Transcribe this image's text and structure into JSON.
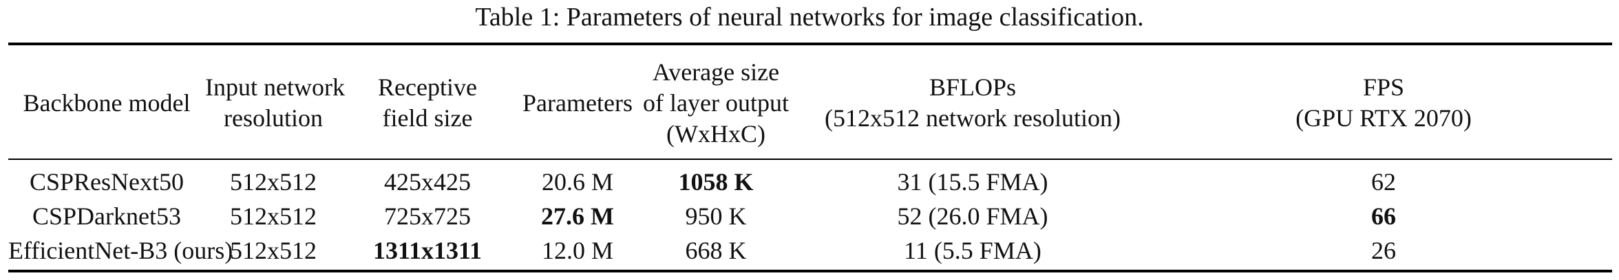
{
  "caption": "Table 1: Parameters of neural networks for image classification.",
  "headers": [
    [
      "Backbone model"
    ],
    [
      "Input network",
      "resolution"
    ],
    [
      "Receptive",
      "field size"
    ],
    [
      "Parameters"
    ],
    [
      "Average size",
      "of layer output",
      "(WxHxC)"
    ],
    [
      "BFLOPs",
      "(512x512 network resolution)"
    ],
    [
      "FPS",
      "(GPU RTX 2070)"
    ]
  ],
  "rows": [
    [
      {
        "text": "CSPResNext50",
        "bold": false
      },
      {
        "text": "512x512",
        "bold": false
      },
      {
        "text": "425x425",
        "bold": false
      },
      {
        "text": "20.6 M",
        "bold": false
      },
      {
        "text": "1058 K",
        "bold": true
      },
      {
        "text": "31 (15.5 FMA)",
        "bold": false
      },
      {
        "text": "62",
        "bold": false
      }
    ],
    [
      {
        "text": "CSPDarknet53",
        "bold": false
      },
      {
        "text": "512x512",
        "bold": false
      },
      {
        "text": "725x725",
        "bold": false
      },
      {
        "text": "27.6 M",
        "bold": true
      },
      {
        "text": "950 K",
        "bold": false
      },
      {
        "text": "52 (26.0 FMA)",
        "bold": false
      },
      {
        "text": "66",
        "bold": true
      }
    ],
    [
      {
        "text": "EfficientNet-B3 (ours)",
        "bold": false
      },
      {
        "text": "512x512",
        "bold": false
      },
      {
        "text": "1311x1311",
        "bold": true
      },
      {
        "text": "12.0 M",
        "bold": false
      },
      {
        "text": "668 K",
        "bold": false
      },
      {
        "text": "11 (5.5 FMA)",
        "bold": false
      },
      {
        "text": "26",
        "bold": false
      }
    ]
  ]
}
